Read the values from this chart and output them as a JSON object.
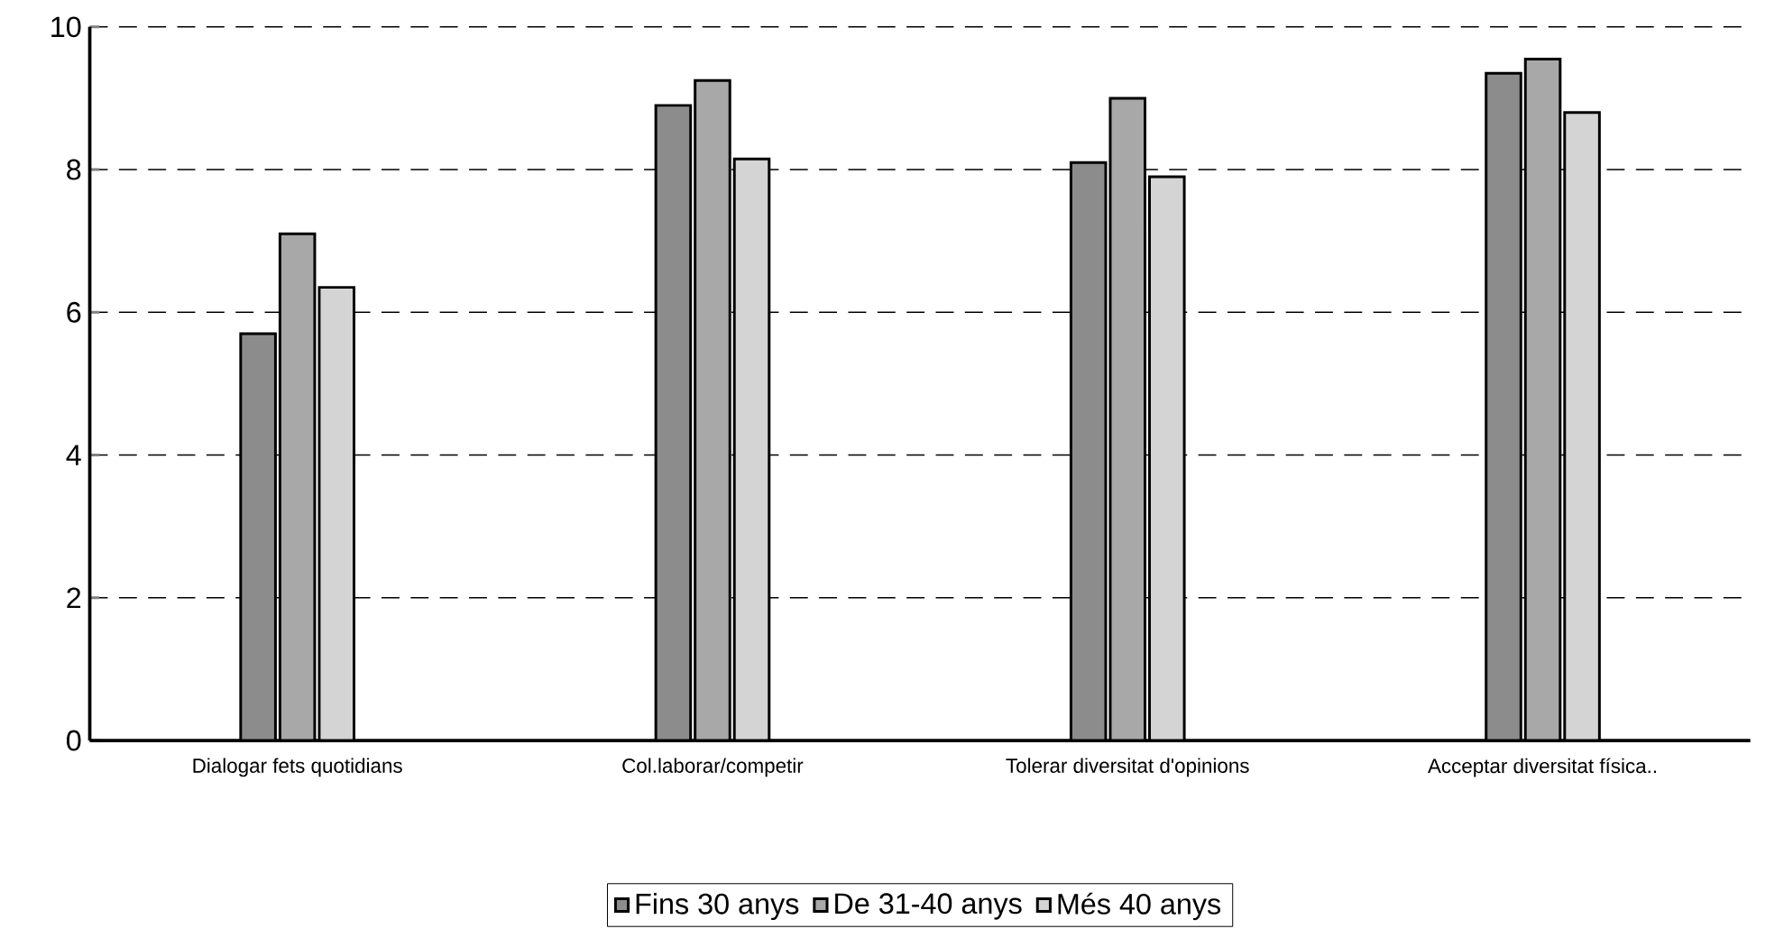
{
  "chart_data": {
    "type": "bar",
    "categories": [
      "Dialogar fets quotidians",
      "Col.laborar/competir",
      "Tolerar diversitat d'opinions",
      "Acceptar diversitat física.."
    ],
    "series": [
      {
        "name": "Fins 30 anys",
        "color": "#8c8c8c",
        "values": [
          5.7,
          8.9,
          8.1,
          9.35
        ]
      },
      {
        "name": "De 31-40 anys",
        "color": "#a8a8a8",
        "values": [
          7.1,
          9.25,
          9.0,
          9.55
        ]
      },
      {
        "name": "Més 40 anys",
        "color": "#d4d4d4",
        "values": [
          6.35,
          8.15,
          7.9,
          8.8
        ]
      }
    ],
    "ylim": [
      0,
      10
    ],
    "yticks": [
      0,
      2,
      4,
      6,
      8,
      10
    ],
    "grid": "y",
    "legend": "bottom"
  }
}
